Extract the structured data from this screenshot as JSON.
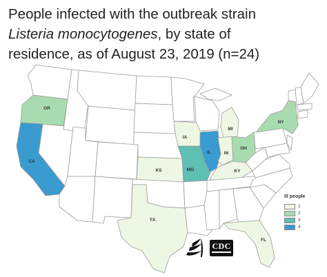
{
  "title": {
    "line1": "People infected with the outbreak strain",
    "line2_italic": "Listeria monocytogenes",
    "line2_rest": ", by state of",
    "line3": "residence, as of August 23, 2019 (n=24)"
  },
  "legend": {
    "title": "Ill people",
    "items": [
      {
        "label": "1",
        "color": "#eef7e4"
      },
      {
        "label": "2",
        "color": "#a8dcb0"
      },
      {
        "label": "3",
        "color": "#5ebfb3"
      },
      {
        "label": "4",
        "color": "#3a9bd0"
      }
    ]
  },
  "colors": {
    "no_cases": "#ffffff",
    "border": "#9a9a9a"
  },
  "states": [
    {
      "abbr": "OR",
      "ill": 2
    },
    {
      "abbr": "CA",
      "ill": 4
    },
    {
      "abbr": "TX",
      "ill": 1
    },
    {
      "abbr": "KS",
      "ill": 1
    },
    {
      "abbr": "MO",
      "ill": 3
    },
    {
      "abbr": "IA",
      "ill": 1
    },
    {
      "abbr": "IL",
      "ill": 4
    },
    {
      "abbr": "IN",
      "ill": 1
    },
    {
      "abbr": "MI",
      "ill": 1
    },
    {
      "abbr": "OH",
      "ill": 2
    },
    {
      "abbr": "KY",
      "ill": 1
    },
    {
      "abbr": "NY",
      "ill": 2
    },
    {
      "abbr": "FL",
      "ill": 1
    }
  ],
  "logos": {
    "cdc_text": "CDC"
  }
}
